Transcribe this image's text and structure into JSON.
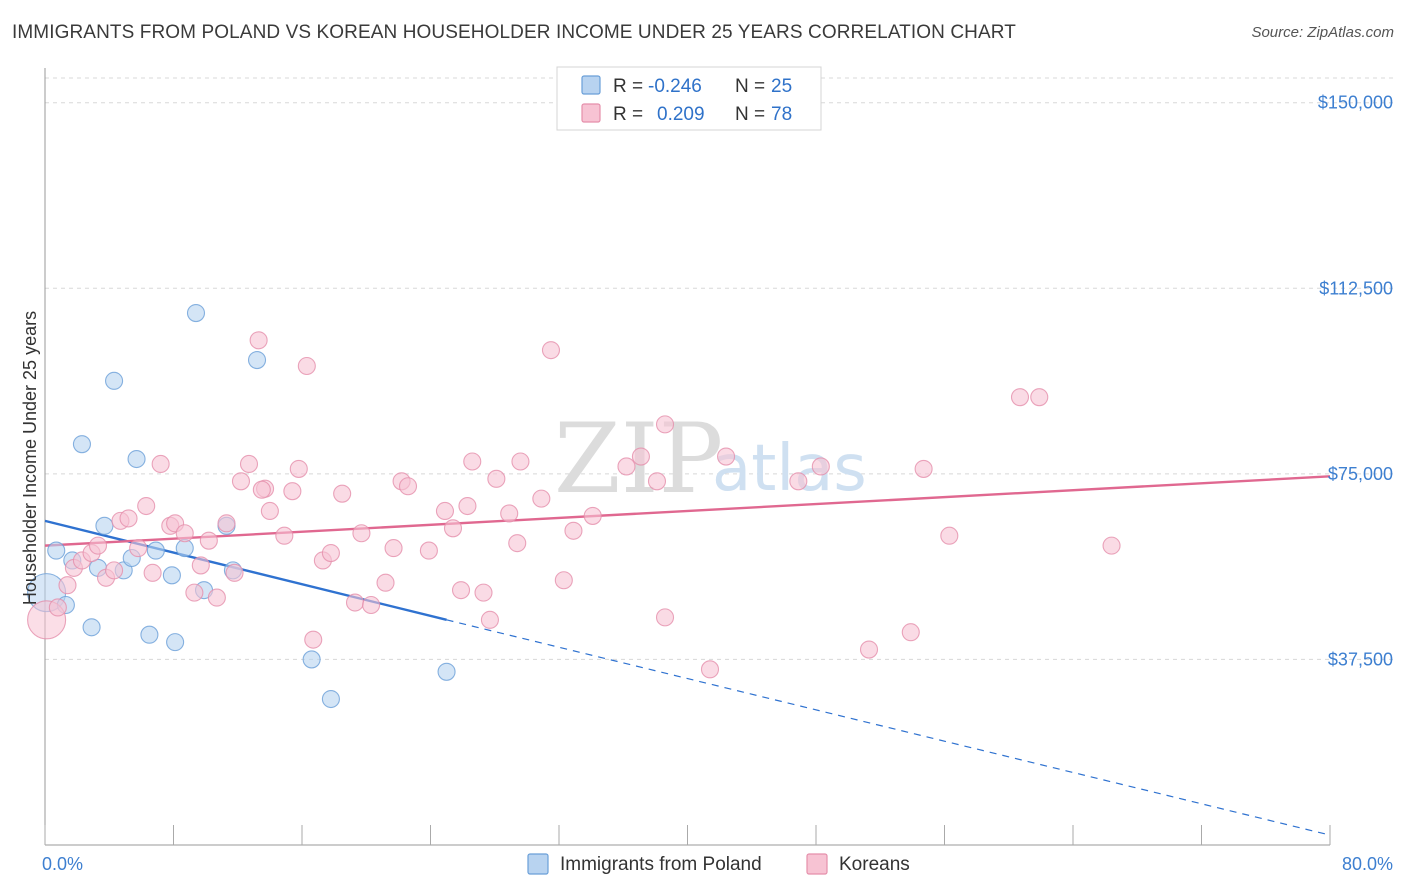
{
  "header": {
    "title": "IMMIGRANTS FROM POLAND VS KOREAN HOUSEHOLDER INCOME UNDER 25 YEARS CORRELATION CHART",
    "source": "Source: ZipAtlas.com"
  },
  "watermark": {
    "zip": "ZIP",
    "atlas": "atlas"
  },
  "legend": {
    "poland": {
      "r_label": "R = ",
      "r_value": "-0.246",
      "n_label": "N = ",
      "n_value": "25"
    },
    "korea": {
      "r_label": "R = ",
      "r_value": "0.209",
      "n_label": "N = ",
      "n_value": "78"
    }
  },
  "colors": {
    "poland_fill": "#b8d3f0",
    "poland_stroke": "#6a9fd8",
    "poland_line": "#2f72d0",
    "korea_fill": "#f7c3d3",
    "korea_stroke": "#e58fab",
    "korea_line": "#e06890",
    "grid": "#d8d8d8",
    "tick_text": "#3d7fd0"
  },
  "chart_data": {
    "type": "scatter",
    "title": "IMMIGRANTS FROM POLAND VS KOREAN HOUSEHOLDER INCOME UNDER 25 YEARS CORRELATION CHART",
    "xlabel": "",
    "ylabel": "Householder Income Under 25 years",
    "xlim": [
      0,
      80
    ],
    "ylim": [
      0,
      155000
    ],
    "x_tick_labels": [
      {
        "value": 0,
        "label": "0.0%"
      },
      {
        "value": 80,
        "label": "80.0%"
      }
    ],
    "y_tick_labels": [
      {
        "value": 37500,
        "label": "$37,500"
      },
      {
        "value": 75000,
        "label": "$75,000"
      },
      {
        "value": 112500,
        "label": "$112,500"
      },
      {
        "value": 150000,
        "label": "$150,000"
      }
    ],
    "grid": true,
    "legend_position": "top-center",
    "series": [
      {
        "name": "Immigrants from Poland",
        "color": "#b8d3f0",
        "points": [
          {
            "x": 0.1,
            "y": 51000,
            "size": "large"
          },
          {
            "x": 0.7,
            "y": 59500
          },
          {
            "x": 1.3,
            "y": 48500
          },
          {
            "x": 1.7,
            "y": 57500
          },
          {
            "x": 2.3,
            "y": 81000
          },
          {
            "x": 2.9,
            "y": 44000
          },
          {
            "x": 3.3,
            "y": 56000
          },
          {
            "x": 3.7,
            "y": 64500
          },
          {
            "x": 4.3,
            "y": 93800
          },
          {
            "x": 4.9,
            "y": 55500
          },
          {
            "x": 5.4,
            "y": 58000
          },
          {
            "x": 5.7,
            "y": 78000
          },
          {
            "x": 6.5,
            "y": 42500
          },
          {
            "x": 6.9,
            "y": 59500
          },
          {
            "x": 7.9,
            "y": 54500
          },
          {
            "x": 8.1,
            "y": 41000
          },
          {
            "x": 8.7,
            "y": 60000
          },
          {
            "x": 9.4,
            "y": 107500
          },
          {
            "x": 9.9,
            "y": 51500
          },
          {
            "x": 11.3,
            "y": 64500
          },
          {
            "x": 11.7,
            "y": 55500
          },
          {
            "x": 13.2,
            "y": 98000
          },
          {
            "x": 16.6,
            "y": 37500
          },
          {
            "x": 17.8,
            "y": 29500
          },
          {
            "x": 25,
            "y": 35000
          }
        ],
        "trend": {
          "x": [
            0,
            25
          ],
          "y": [
            65500,
            45500
          ],
          "dashed_to": {
            "x": 80,
            "y": 2000
          }
        }
      },
      {
        "name": "Koreans",
        "color": "#f7c3d3",
        "points": [
          {
            "x": 0.1,
            "y": 45500,
            "size": "large"
          },
          {
            "x": 0.8,
            "y": 48000
          },
          {
            "x": 1.4,
            "y": 52500
          },
          {
            "x": 1.8,
            "y": 56000
          },
          {
            "x": 2.3,
            "y": 57500
          },
          {
            "x": 2.9,
            "y": 59000
          },
          {
            "x": 3.3,
            "y": 60500
          },
          {
            "x": 3.8,
            "y": 54000
          },
          {
            "x": 4.3,
            "y": 55500
          },
          {
            "x": 4.7,
            "y": 65500
          },
          {
            "x": 5.2,
            "y": 66000
          },
          {
            "x": 5.8,
            "y": 60000
          },
          {
            "x": 6.3,
            "y": 68500
          },
          {
            "x": 6.7,
            "y": 55000
          },
          {
            "x": 7.2,
            "y": 77000
          },
          {
            "x": 7.8,
            "y": 64500
          },
          {
            "x": 8.1,
            "y": 65000
          },
          {
            "x": 8.7,
            "y": 63000
          },
          {
            "x": 9.3,
            "y": 51000
          },
          {
            "x": 9.7,
            "y": 56500
          },
          {
            "x": 10.2,
            "y": 61500
          },
          {
            "x": 10.7,
            "y": 50000
          },
          {
            "x": 11.3,
            "y": 65000
          },
          {
            "x": 11.8,
            "y": 55000
          },
          {
            "x": 12.2,
            "y": 73500
          },
          {
            "x": 12.7,
            "y": 77000
          },
          {
            "x": 13.3,
            "y": 102000
          },
          {
            "x": 13.7,
            "y": 72000
          },
          {
            "x": 14.0,
            "y": 67500
          },
          {
            "x": 14.9,
            "y": 62500
          },
          {
            "x": 15.4,
            "y": 71500
          },
          {
            "x": 15.8,
            "y": 76000
          },
          {
            "x": 16.3,
            "y": 96800
          },
          {
            "x": 16.7,
            "y": 41500
          },
          {
            "x": 17.3,
            "y": 57500
          },
          {
            "x": 17.8,
            "y": 59000
          },
          {
            "x": 18.5,
            "y": 71000
          },
          {
            "x": 19.3,
            "y": 49000
          },
          {
            "x": 19.7,
            "y": 63000
          },
          {
            "x": 20.3,
            "y": 48500
          },
          {
            "x": 21.2,
            "y": 53000
          },
          {
            "x": 21.7,
            "y": 60000
          },
          {
            "x": 22.2,
            "y": 73500
          },
          {
            "x": 22.6,
            "y": 72500
          },
          {
            "x": 24.9,
            "y": 67500
          },
          {
            "x": 25.4,
            "y": 64000
          },
          {
            "x": 25.9,
            "y": 51500
          },
          {
            "x": 26.3,
            "y": 68500
          },
          {
            "x": 26.6,
            "y": 77500
          },
          {
            "x": 27.3,
            "y": 51000
          },
          {
            "x": 27.7,
            "y": 45500
          },
          {
            "x": 28.1,
            "y": 74000
          },
          {
            "x": 28.9,
            "y": 67000
          },
          {
            "x": 29.4,
            "y": 61000
          },
          {
            "x": 29.6,
            "y": 77500
          },
          {
            "x": 30.9,
            "y": 70000
          },
          {
            "x": 31.5,
            "y": 100000
          },
          {
            "x": 32.3,
            "y": 53500
          },
          {
            "x": 32.9,
            "y": 63500
          },
          {
            "x": 34.1,
            "y": 66500
          },
          {
            "x": 36.2,
            "y": 76500
          },
          {
            "x": 37.1,
            "y": 78500
          },
          {
            "x": 38.1,
            "y": 73500
          },
          {
            "x": 38.6,
            "y": 46000
          },
          {
            "x": 38.6,
            "y": 85000
          },
          {
            "x": 41.4,
            "y": 35500
          },
          {
            "x": 42.4,
            "y": 78500
          },
          {
            "x": 46.9,
            "y": 73500
          },
          {
            "x": 48.3,
            "y": 76500
          },
          {
            "x": 51.3,
            "y": 39500
          },
          {
            "x": 53.9,
            "y": 43000
          },
          {
            "x": 54.7,
            "y": 76000
          },
          {
            "x": 56.3,
            "y": 62500
          },
          {
            "x": 60.7,
            "y": 90500
          },
          {
            "x": 61.9,
            "y": 90500
          },
          {
            "x": 66.4,
            "y": 60500
          },
          {
            "x": 13.5,
            "y": 71800
          },
          {
            "x": 23.9,
            "y": 59500
          }
        ],
        "trend": {
          "x": [
            0,
            80
          ],
          "y": [
            60500,
            74500
          ]
        }
      }
    ]
  },
  "bottom_legend": {
    "poland_label": "Immigrants from Poland",
    "korea_label": "Koreans"
  }
}
